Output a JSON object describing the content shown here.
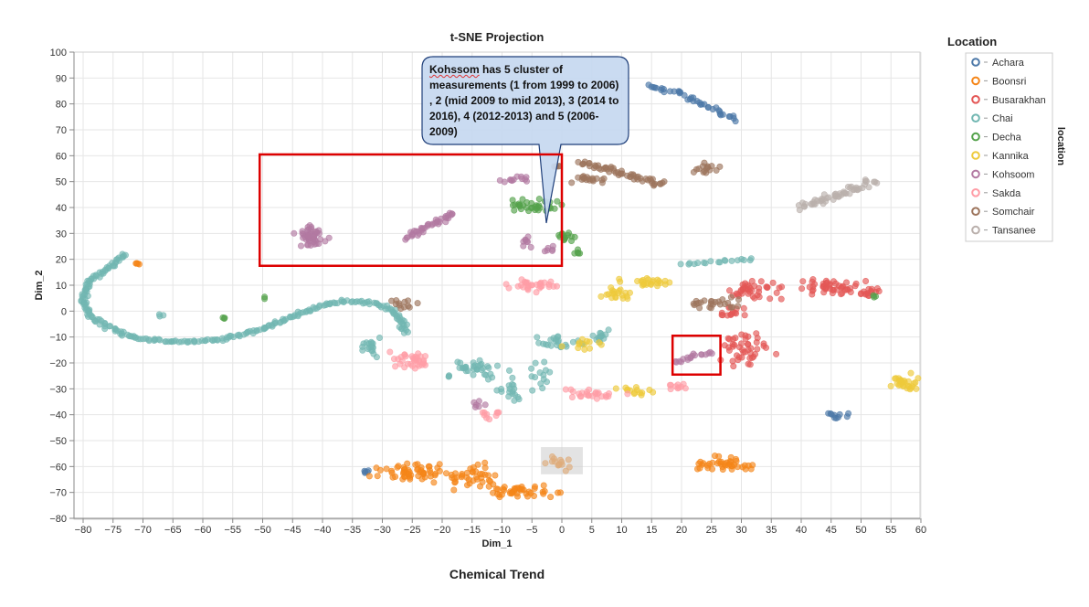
{
  "chart_data": {
    "type": "scatter",
    "title": "t-SNE Projection",
    "xlabel": "Dim_1",
    "ylabel": "Dim_2",
    "xlim": [
      -82,
      61
    ],
    "ylim": [
      -80,
      100
    ],
    "x_ticks": [
      -80,
      -75,
      -70,
      -65,
      -60,
      -55,
      -50,
      -45,
      -40,
      -35,
      -30,
      -25,
      -20,
      -15,
      -10,
      -5,
      0,
      5,
      10,
      15,
      20,
      25,
      30,
      35,
      40,
      45,
      50,
      55,
      60
    ],
    "y_ticks": [
      -80,
      -70,
      -60,
      -50,
      -40,
      -30,
      -20,
      -10,
      0,
      10,
      20,
      30,
      40,
      50,
      60,
      70,
      80,
      90,
      100
    ],
    "grid": true,
    "legend_title": "Location",
    "legend_side_label": "location",
    "legend_position": "right",
    "series": [
      {
        "name": "Achara",
        "color": "#4c78a8",
        "clusters": [
          {
            "kind": "line",
            "pts": [
              [
                14,
                87
              ],
              [
                20,
                84
              ],
              [
                25,
                78
              ],
              [
                29,
                74
              ]
            ],
            "w": 1.4,
            "n": 40
          },
          {
            "kind": "blob",
            "c": [
              46,
              -40
            ],
            "r": [
              1.5,
              1.2
            ],
            "n": 10
          },
          {
            "kind": "blob",
            "c": [
              -32.5,
              -62.5
            ],
            "r": [
              0.7,
              0.8
            ],
            "n": 5
          }
        ]
      },
      {
        "name": "Boonsri",
        "color": "#f58518",
        "clusters": [
          {
            "kind": "blob",
            "c": [
              -25,
              -62
            ],
            "r": [
              5,
              3
            ],
            "n": 55
          },
          {
            "kind": "blob",
            "c": [
              -15,
              -64
            ],
            "r": [
              5,
              4
            ],
            "n": 40
          },
          {
            "kind": "blob",
            "c": [
              -6,
              -70
            ],
            "r": [
              5,
              2
            ],
            "n": 40
          },
          {
            "kind": "blob",
            "c": [
              0,
              -59
            ],
            "r": [
              2,
              2
            ],
            "n": 14
          },
          {
            "kind": "blob",
            "c": [
              27,
              -59
            ],
            "r": [
              5,
              2.5
            ],
            "n": 40
          },
          {
            "kind": "blob",
            "c": [
              -71,
              18
            ],
            "r": [
              0.6,
              0.8
            ],
            "n": 4
          }
        ]
      },
      {
        "name": "Busarakhan",
        "color": "#e45756",
        "clusters": [
          {
            "kind": "blob",
            "c": [
              32,
              8
            ],
            "r": [
              4,
              3
            ],
            "n": 40
          },
          {
            "kind": "blob",
            "c": [
              44,
              9
            ],
            "r": [
              5,
              3
            ],
            "n": 45
          },
          {
            "kind": "blob",
            "c": [
              51,
              7
            ],
            "r": [
              2,
              2
            ],
            "n": 15
          },
          {
            "kind": "blob",
            "c": [
              31,
              -15
            ],
            "r": [
              3.5,
              6
            ],
            "n": 45
          },
          {
            "kind": "blob",
            "c": [
              28,
              0
            ],
            "r": [
              3,
              2
            ],
            "n": 15
          }
        ]
      },
      {
        "name": "Chai",
        "color": "#72b7b2",
        "clusters": [
          {
            "kind": "line",
            "pts": [
              [
                -73,
                22
              ],
              [
                -76,
                16
              ],
              [
                -79,
                12
              ],
              [
                -80,
                5
              ],
              [
                -79,
                -1
              ],
              [
                -76,
                -6
              ],
              [
                -72,
                -10
              ],
              [
                -65,
                -12
              ],
              [
                -57,
                -11
              ],
              [
                -50,
                -7
              ],
              [
                -45,
                -2
              ],
              [
                -40,
                2
              ],
              [
                -36,
                4
              ],
              [
                -31,
                3
              ],
              [
                -28,
                0
              ],
              [
                -26,
                -8
              ]
            ],
            "w": 0.9,
            "n": 260
          },
          {
            "kind": "blob",
            "c": [
              -32,
              -14
            ],
            "r": [
              2,
              4
            ],
            "n": 18
          },
          {
            "kind": "blob",
            "c": [
              -15,
              -22
            ],
            "r": [
              4,
              3
            ],
            "n": 35
          },
          {
            "kind": "blob",
            "c": [
              -9,
              -31
            ],
            "r": [
              3,
              5
            ],
            "n": 18
          },
          {
            "kind": "blob",
            "c": [
              -3,
              -25
            ],
            "r": [
              2,
              4
            ],
            "n": 14
          },
          {
            "kind": "blob",
            "c": [
              -1,
              -12
            ],
            "r": [
              4,
              3
            ],
            "n": 22
          },
          {
            "kind": "blob",
            "c": [
              7,
              -10
            ],
            "r": [
              3,
              3
            ],
            "n": 15
          },
          {
            "kind": "line",
            "pts": [
              [
                20,
                18
              ],
              [
                26,
                19
              ],
              [
                32,
                20
              ]
            ],
            "w": 0.8,
            "n": 18
          },
          {
            "kind": "blob",
            "c": [
              -67,
              -2
            ],
            "r": [
              0.8,
              0.8
            ],
            "n": 3
          }
        ]
      },
      {
        "name": "Decha",
        "color": "#54a24b",
        "clusters": [
          {
            "kind": "blob",
            "c": [
              -4,
              41
            ],
            "r": [
              3.5,
              2
            ],
            "n": 35
          },
          {
            "kind": "blob",
            "c": [
              1,
              29
            ],
            "r": [
              1.5,
              2
            ],
            "n": 14
          },
          {
            "kind": "blob",
            "c": [
              3,
              23
            ],
            "r": [
              1,
              1
            ],
            "n": 5
          },
          {
            "kind": "blob",
            "c": [
              -57,
              -3
            ],
            "r": [
              0.8,
              0.8
            ],
            "n": 3
          },
          {
            "kind": "blob",
            "c": [
              52,
              6
            ],
            "r": [
              0.8,
              0.8
            ],
            "n": 3
          },
          {
            "kind": "blob",
            "c": [
              -50,
              5
            ],
            "r": [
              0.6,
              0.6
            ],
            "n": 2
          }
        ]
      },
      {
        "name": "Kannika",
        "color": "#eeca3b",
        "clusters": [
          {
            "kind": "blob",
            "c": [
              9,
              7
            ],
            "r": [
              2.5,
              2
            ],
            "n": 20
          },
          {
            "kind": "blob",
            "c": [
              15,
              11
            ],
            "r": [
              4,
              1.5
            ],
            "n": 25
          },
          {
            "kind": "blob",
            "c": [
              57,
              -28
            ],
            "r": [
              2.5,
              3
            ],
            "n": 30
          },
          {
            "kind": "blob",
            "c": [
              12,
              -31
            ],
            "r": [
              3,
              1.5
            ],
            "n": 14
          },
          {
            "kind": "blob",
            "c": [
              3,
              -13
            ],
            "r": [
              3,
              2
            ],
            "n": 12
          }
        ]
      },
      {
        "name": "Kohsoom",
        "color": "#b279a2",
        "clusters": [
          {
            "kind": "blob",
            "c": [
              -42,
              29
            ],
            "r": [
              2,
              4
            ],
            "n": 50
          },
          {
            "kind": "line",
            "pts": [
              [
                -26,
                28
              ],
              [
                -22,
                33
              ],
              [
                -18,
                38
              ]
            ],
            "w": 1.2,
            "n": 40
          },
          {
            "kind": "blob",
            "c": [
              -8,
              51
            ],
            "r": [
              2.5,
              1
            ],
            "n": 12
          },
          {
            "kind": "blob",
            "c": [
              -6,
              27
            ],
            "r": [
              1,
              2
            ],
            "n": 8
          },
          {
            "kind": "blob",
            "c": [
              -2,
              24
            ],
            "r": [
              1.2,
              1.2
            ],
            "n": 6
          },
          {
            "kind": "line",
            "pts": [
              [
                19,
                -20
              ],
              [
                22,
                -17
              ],
              [
                25,
                -16
              ]
            ],
            "w": 1.0,
            "n": 18
          },
          {
            "kind": "blob",
            "c": [
              -14,
              -36
            ],
            "r": [
              1,
              1.5
            ],
            "n": 6
          }
        ]
      },
      {
        "name": "Sakda",
        "color": "#ff9da6",
        "clusters": [
          {
            "kind": "blob",
            "c": [
              -25,
              -19
            ],
            "r": [
              3.5,
              3
            ],
            "n": 35
          },
          {
            "kind": "blob",
            "c": [
              -5,
              10
            ],
            "r": [
              4,
              2
            ],
            "n": 30
          },
          {
            "kind": "blob",
            "c": [
              5,
              -32
            ],
            "r": [
              4,
              2
            ],
            "n": 25
          },
          {
            "kind": "blob",
            "c": [
              19,
              -29
            ],
            "r": [
              2,
              2
            ],
            "n": 10
          },
          {
            "kind": "blob",
            "c": [
              -12,
              -40
            ],
            "r": [
              2,
              1.5
            ],
            "n": 10
          }
        ]
      },
      {
        "name": "Somchair",
        "color": "#9d755d",
        "clusters": [
          {
            "kind": "line",
            "pts": [
              [
                3,
                57
              ],
              [
                8,
                55
              ],
              [
                12,
                52
              ],
              [
                17,
                49
              ]
            ],
            "w": 1.5,
            "n": 55
          },
          {
            "kind": "blob",
            "c": [
              4,
              51
            ],
            "r": [
              3,
              1.5
            ],
            "n": 18
          },
          {
            "kind": "blob",
            "c": [
              24,
              55
            ],
            "r": [
              2,
              2
            ],
            "n": 15
          },
          {
            "kind": "blob",
            "c": [
              26,
              3
            ],
            "r": [
              4,
              2
            ],
            "n": 25
          },
          {
            "kind": "blob",
            "c": [
              -27,
              3
            ],
            "r": [
              2,
              2
            ],
            "n": 12
          },
          {
            "kind": "blob",
            "c": [
              -1,
              56
            ],
            "r": [
              1,
              1
            ],
            "n": 5
          }
        ]
      },
      {
        "name": "Tansanee",
        "color": "#bab0ac",
        "clusters": [
          {
            "kind": "line",
            "pts": [
              [
                40,
                40
              ],
              [
                45,
                44
              ],
              [
                52,
                50
              ]
            ],
            "w": 2,
            "n": 55
          }
        ]
      }
    ],
    "annotations": [
      {
        "type": "callout",
        "text": "Kohssom has 5 cluster of measurements (1 from 1999 to 2006) , 2 (mid 2009 to mid 2013), 3 (2014 to 2016), 4 (2012-2013) and 5 (2006-2009)",
        "underlined_word": "Kohssom"
      },
      {
        "type": "rect",
        "x": [
          -50.5,
          0
        ],
        "y": [
          17.5,
          60.5
        ],
        "color": "#dd0000"
      },
      {
        "type": "rect",
        "x": [
          18.5,
          26.5
        ],
        "y": [
          -24.5,
          -9.5
        ],
        "color": "#dd0000"
      },
      {
        "type": "rect",
        "x": [
          -3.5,
          3.5
        ],
        "y": [
          -63,
          -52.5
        ],
        "color": "#bbbbbb"
      }
    ]
  },
  "footer": "Chemical Trend"
}
